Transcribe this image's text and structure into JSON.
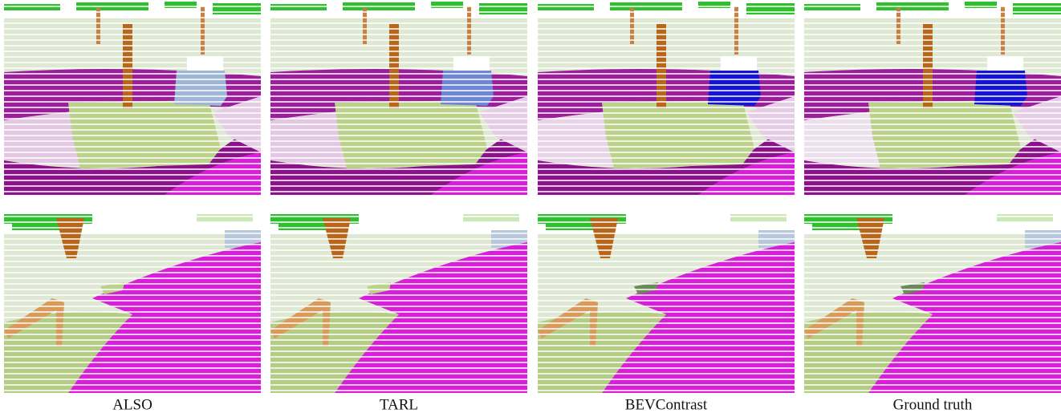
{
  "captions": [
    "ALSO",
    "TARL",
    "BEVContrast",
    "Ground truth"
  ]
}
